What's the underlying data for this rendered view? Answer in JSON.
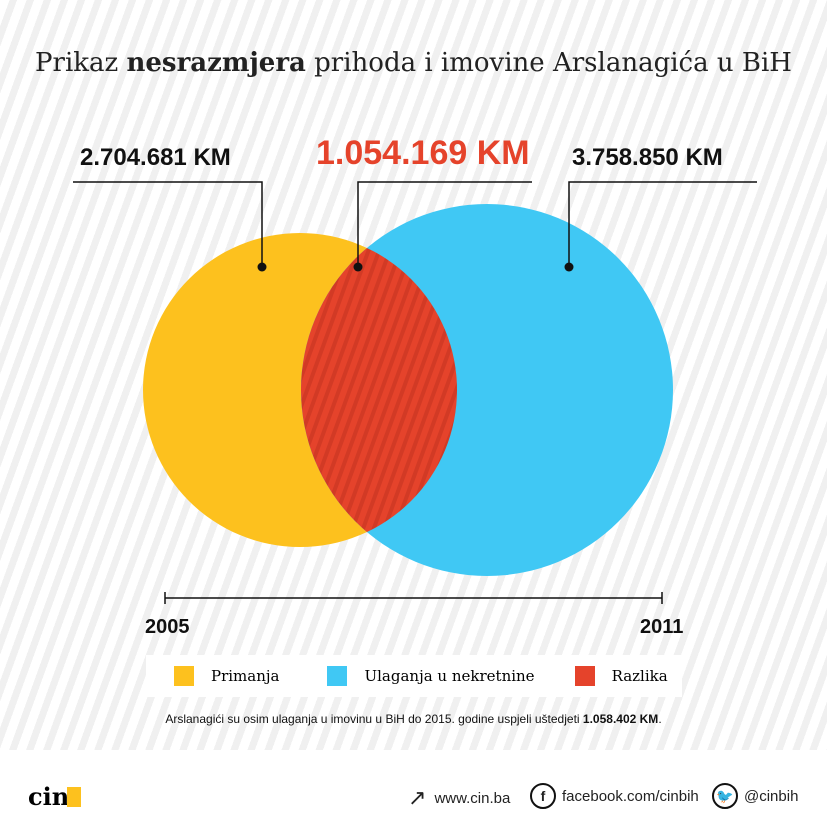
{
  "title": {
    "pre": "Prikaz ",
    "bold": "nesrazmjera",
    "post": " prihoda i imovine Arslanagića u BiH"
  },
  "values": {
    "income": "2.704.681 KM",
    "difference": "1.054.169 KM",
    "investment": "3.758.850 KM"
  },
  "timeline": {
    "start": "2005",
    "end": "2011"
  },
  "legend": [
    {
      "label": "Primanja",
      "color": "#fdc11e"
    },
    {
      "label": "Ulaganja u nekretnine",
      "color": "#40c8f4"
    },
    {
      "label": "Razlika",
      "color": "#e5432b"
    }
  ],
  "note": {
    "text": "Arslanagići su osim ulaganja u imovinu u BiH do 2015. godine uspjeli uštedjeti ",
    "bold": "1.058.402 KM",
    "end": "."
  },
  "footer": {
    "logo": "cin",
    "website": "www.cin.ba",
    "facebook": "facebook.com/cinbih",
    "twitter": "@cinbih"
  }
}
